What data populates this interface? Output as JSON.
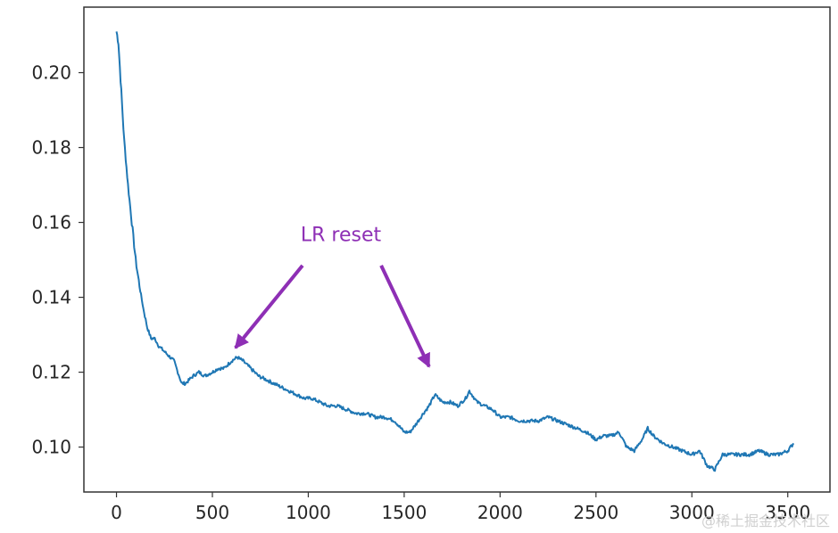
{
  "chart_data": {
    "type": "line",
    "title": "",
    "xlabel": "",
    "ylabel": "",
    "xlim": [
      -170,
      3720
    ],
    "ylim": [
      0.088,
      0.2175
    ],
    "xticks": [
      0,
      500,
      1000,
      1500,
      2000,
      2500,
      3000,
      3500
    ],
    "yticks": [
      0.1,
      0.12,
      0.14,
      0.16,
      0.18,
      0.2
    ],
    "grid": false,
    "legend": "none",
    "series": [
      {
        "color": "#1f77b4",
        "x": [
          0,
          10,
          25,
          40,
          60,
          80,
          100,
          120,
          140,
          160,
          180,
          200,
          220,
          240,
          260,
          280,
          300,
          320,
          340,
          360,
          380,
          400,
          430,
          460,
          500,
          530,
          560,
          600,
          630,
          660,
          700,
          740,
          780,
          820,
          860,
          900,
          940,
          980,
          1020,
          1060,
          1100,
          1150,
          1200,
          1250,
          1300,
          1350,
          1400,
          1450,
          1500,
          1530,
          1560,
          1600,
          1630,
          1660,
          1700,
          1740,
          1780,
          1820,
          1840,
          1880,
          1920,
          1960,
          2000,
          2050,
          2100,
          2150,
          2200,
          2250,
          2300,
          2350,
          2400,
          2450,
          2500,
          2540,
          2580,
          2620,
          2660,
          2700,
          2740,
          2770,
          2800,
          2850,
          2900,
          2950,
          3000,
          3040,
          3080,
          3120,
          3160,
          3200,
          3250,
          3300,
          3350,
          3400,
          3450,
          3500,
          3530
        ],
        "y": [
          0.211,
          0.208,
          0.195,
          0.182,
          0.17,
          0.16,
          0.15,
          0.143,
          0.137,
          0.132,
          0.129,
          0.129,
          0.127,
          0.126,
          0.125,
          0.124,
          0.123,
          0.12,
          0.117,
          0.117,
          0.118,
          0.119,
          0.12,
          0.119,
          0.12,
          0.121,
          0.121,
          0.123,
          0.124,
          0.123,
          0.121,
          0.119,
          0.118,
          0.117,
          0.116,
          0.115,
          0.114,
          0.113,
          0.113,
          0.112,
          0.111,
          0.111,
          0.11,
          0.109,
          0.109,
          0.108,
          0.108,
          0.107,
          0.104,
          0.104,
          0.106,
          0.109,
          0.111,
          0.114,
          0.112,
          0.112,
          0.111,
          0.113,
          0.115,
          0.112,
          0.111,
          0.11,
          0.108,
          0.108,
          0.107,
          0.107,
          0.107,
          0.108,
          0.107,
          0.106,
          0.105,
          0.104,
          0.102,
          0.103,
          0.103,
          0.104,
          0.1,
          0.099,
          0.102,
          0.105,
          0.103,
          0.101,
          0.1,
          0.099,
          0.098,
          0.099,
          0.095,
          0.094,
          0.098,
          0.098,
          0.098,
          0.098,
          0.099,
          0.098,
          0.098,
          0.099,
          0.101
        ]
      }
    ],
    "annotations": [
      {
        "text": "LR reset",
        "color": "#8e2fb5",
        "text_at": [
          1170,
          0.155
        ],
        "arrows": [
          {
            "from": [
              970,
              0.1485
            ],
            "to": [
              620,
              0.1265
            ]
          },
          {
            "from": [
              1380,
              0.1485
            ],
            "to": [
              1630,
              0.1215
            ]
          }
        ]
      }
    ]
  },
  "watermark": {
    "text": "@稀土掘金技术社区"
  }
}
